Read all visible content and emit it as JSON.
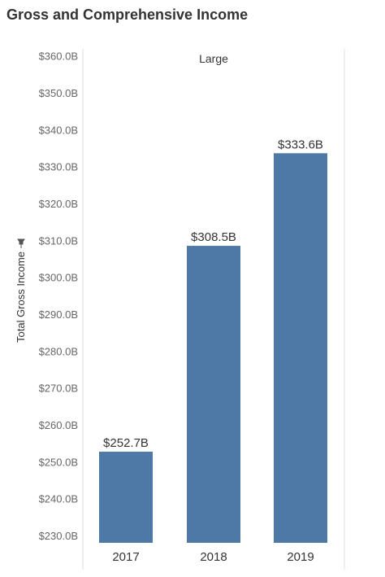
{
  "chart_data": {
    "type": "bar",
    "title": "Gross and Comprehensive Income",
    "panel_label": "Large",
    "ylabel": "Total Gross Income",
    "categories": [
      "2017",
      "2018",
      "2019"
    ],
    "values": [
      252.7,
      308.5,
      333.6
    ],
    "data_labels": [
      "$252.7B",
      "$308.5B",
      "$333.6B"
    ],
    "ylim": [
      228,
      363
    ],
    "y_ticks": [
      360,
      350,
      340,
      330,
      320,
      310,
      300,
      290,
      280,
      270,
      260,
      250,
      240,
      230
    ],
    "y_tick_labels": [
      "$360.0B",
      "$350.0B",
      "$340.0B",
      "$330.0B",
      "$320.0B",
      "$310.0B",
      "$300.0B",
      "$290.0B",
      "$280.0B",
      "$270.0B",
      "$260.0B",
      "$250.0B",
      "$240.0B",
      "$230.0B"
    ],
    "grid": false,
    "bar_color": "#4e79a7",
    "ylabel_icon": "pin-icon"
  }
}
